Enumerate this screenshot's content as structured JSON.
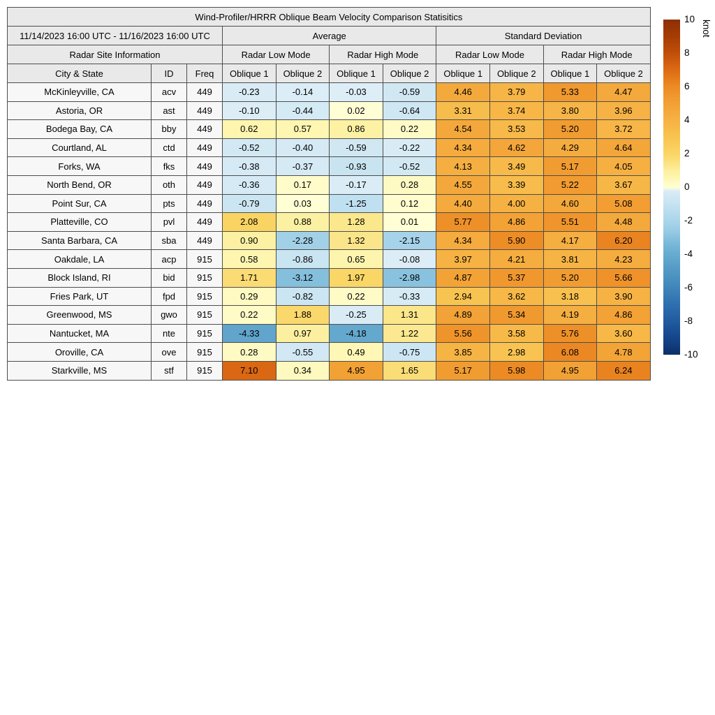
{
  "chart_data": {
    "type": "heatmap",
    "title": "Wind-Profiler/HRRR Oblique Beam Velocity Comparison Statisitics",
    "date_range": "11/14/2023 16:00 UTC - 11/16/2023 16:00 UTC",
    "group_headers": [
      "Average",
      "Standard Deviation"
    ],
    "site_info_header": "Radar Site Information",
    "mode_headers": [
      "Radar Low Mode",
      "Radar High Mode",
      "Radar Low Mode",
      "Radar High Mode"
    ],
    "columns": [
      "City & State",
      "ID",
      "Freq",
      "Oblique 1",
      "Oblique 2",
      "Oblique 1",
      "Oblique 2",
      "Oblique 1",
      "Oblique 2",
      "Oblique 1",
      "Oblique 2"
    ],
    "rows": [
      {
        "city": "McKinleyville, CA",
        "id": "acv",
        "freq": "449",
        "values": [
          "-0.23",
          "-0.14",
          "-0.03",
          "-0.59",
          "4.46",
          "3.79",
          "5.33",
          "4.47"
        ]
      },
      {
        "city": "Astoria, OR",
        "id": "ast",
        "freq": "449",
        "values": [
          "-0.10",
          "-0.44",
          "0.02",
          "-0.64",
          "3.31",
          "3.74",
          "3.80",
          "3.96"
        ]
      },
      {
        "city": "Bodega Bay, CA",
        "id": "bby",
        "freq": "449",
        "values": [
          "0.62",
          "0.57",
          "0.86",
          "0.22",
          "4.54",
          "3.53",
          "5.20",
          "3.72"
        ]
      },
      {
        "city": "Courtland, AL",
        "id": "ctd",
        "freq": "449",
        "values": [
          "-0.52",
          "-0.40",
          "-0.59",
          "-0.22",
          "4.34",
          "4.62",
          "4.29",
          "4.64"
        ]
      },
      {
        "city": "Forks, WA",
        "id": "fks",
        "freq": "449",
        "values": [
          "-0.38",
          "-0.37",
          "-0.93",
          "-0.52",
          "4.13",
          "3.49",
          "5.17",
          "4.05"
        ]
      },
      {
        "city": "North Bend, OR",
        "id": "oth",
        "freq": "449",
        "values": [
          "-0.36",
          "0.17",
          "-0.17",
          "0.28",
          "4.55",
          "3.39",
          "5.22",
          "3.67"
        ]
      },
      {
        "city": "Point Sur, CA",
        "id": "pts",
        "freq": "449",
        "values": [
          "-0.79",
          "0.03",
          "-1.25",
          "0.12",
          "4.40",
          "4.00",
          "4.60",
          "5.08"
        ]
      },
      {
        "city": "Platteville, CO",
        "id": "pvl",
        "freq": "449",
        "values": [
          "2.08",
          "0.88",
          "1.28",
          "0.01",
          "5.77",
          "4.86",
          "5.51",
          "4.48"
        ]
      },
      {
        "city": "Santa Barbara, CA",
        "id": "sba",
        "freq": "449",
        "values": [
          "0.90",
          "-2.28",
          "1.32",
          "-2.15",
          "4.34",
          "5.90",
          "4.17",
          "6.20"
        ]
      },
      {
        "city": "Oakdale, LA",
        "id": "acp",
        "freq": "915",
        "values": [
          "0.58",
          "-0.86",
          "0.65",
          "-0.08",
          "3.97",
          "4.21",
          "3.81",
          "4.23"
        ]
      },
      {
        "city": "Block Island, RI",
        "id": "bid",
        "freq": "915",
        "values": [
          "1.71",
          "-3.12",
          "1.97",
          "-2.98",
          "4.87",
          "5.37",
          "5.20",
          "5.66"
        ]
      },
      {
        "city": "Fries Park, UT",
        "id": "fpd",
        "freq": "915",
        "values": [
          "0.29",
          "-0.82",
          "0.22",
          "-0.33",
          "2.94",
          "3.62",
          "3.18",
          "3.90"
        ]
      },
      {
        "city": "Greenwood, MS",
        "id": "gwo",
        "freq": "915",
        "values": [
          "0.22",
          "1.88",
          "-0.25",
          "1.31",
          "4.89",
          "5.34",
          "4.19",
          "4.86"
        ]
      },
      {
        "city": "Nantucket, MA",
        "id": "nte",
        "freq": "915",
        "values": [
          "-4.33",
          "0.97",
          "-4.18",
          "1.22",
          "5.56",
          "3.58",
          "5.76",
          "3.60"
        ]
      },
      {
        "city": "Oroville, CA",
        "id": "ove",
        "freq": "915",
        "values": [
          "0.28",
          "-0.55",
          "0.49",
          "-0.75",
          "3.85",
          "2.98",
          "6.08",
          "4.78"
        ]
      },
      {
        "city": "Starkville, MS",
        "id": "stf",
        "freq": "915",
        "values": [
          "7.10",
          "0.34",
          "4.95",
          "1.65",
          "5.17",
          "5.98",
          "4.95",
          "6.24"
        ]
      }
    ],
    "colorbar": {
      "label": "knot",
      "vmin": -10,
      "vmax": 10,
      "ticks": [
        10,
        8,
        6,
        4,
        2,
        0,
        -2,
        -4,
        -6,
        -8,
        -10
      ],
      "color_positive_max": "#8c2e04",
      "color_center": "#fffed6",
      "color_negative_max": "#0c3068"
    }
  },
  "table": {
    "title": "Wind-Profiler/HRRR Oblique Beam Velocity Comparison Statisitics",
    "date_range": "11/14/2023 16:00 UTC - 11/16/2023 16:00 UTC",
    "group_average": "Average",
    "group_std": "Standard Deviation",
    "site_info": "Radar Site Information",
    "modes": [
      "Radar Low Mode",
      "Radar High Mode",
      "Radar Low Mode",
      "Radar High Mode"
    ],
    "col_city": "City & State",
    "col_id": "ID",
    "col_freq": "Freq",
    "oblique": [
      "Oblique 1",
      "Oblique 2",
      "Oblique 1",
      "Oblique 2",
      "Oblique 1",
      "Oblique 2",
      "Oblique 1",
      "Oblique 2"
    ]
  }
}
